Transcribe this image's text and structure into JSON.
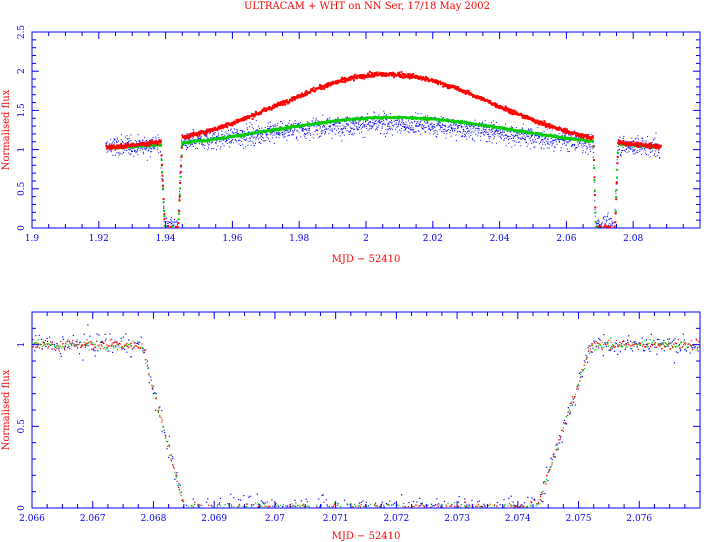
{
  "title": "ULTRACAM + WHT on NN Ser, 17/18 May 2002",
  "colors": {
    "frame": "#0000ff",
    "text": "#ff0000",
    "tick_labels": "#0000ff",
    "series_blue": "#0000ff",
    "series_green": "#00cc00",
    "series_red": "#ff0000"
  },
  "chart_data": [
    {
      "type": "scatter",
      "xlabel": "MJD − 52410",
      "ylabel": "Normalised flux",
      "xlim": [
        1.9,
        2.1
      ],
      "ylim": [
        0,
        2.5
      ],
      "xticks": [
        "1.9",
        "1.92",
        "1.94",
        "1.96",
        "1.98",
        "2",
        "2.02",
        "2.04",
        "2.06",
        "2.08"
      ],
      "yticks": [
        "0",
        "0.5",
        "1",
        "1.5",
        "2",
        "2.5"
      ],
      "grid": false,
      "legend": "none",
      "eclipses": [
        {
          "ingress_start": 1.9383,
          "ingress_end": 1.9395,
          "egress_start": 1.9435,
          "egress_end": 1.9447
        },
        {
          "ingress_start": 2.0678,
          "ingress_end": 2.0685,
          "egress_start": 2.0743,
          "egress_end": 2.0752
        }
      ],
      "x_range_observed": [
        1.922,
        2.088
      ],
      "series": [
        {
          "color": "blue",
          "baseline": 1.0,
          "peak": 1.33,
          "peak_x": 2.005,
          "width": 0.038,
          "eclipse_level": 0.03,
          "scatter": 0.12
        },
        {
          "color": "green",
          "baseline": 1.0,
          "peak": 1.41,
          "peak_x": 2.008,
          "width": 0.036,
          "eclipse_level": 0.0,
          "scatter": 0.01
        },
        {
          "color": "red",
          "baseline": 1.0,
          "peak": 1.96,
          "peak_x": 2.006,
          "width": 0.032,
          "eclipse_level": 0.0,
          "scatter": 0.02
        }
      ]
    },
    {
      "type": "scatter",
      "xlabel": "MJD − 52410",
      "ylabel": "Normalised flux",
      "xlim": [
        2.066,
        2.077
      ],
      "ylim": [
        0,
        1.2
      ],
      "xticks": [
        "2.066",
        "2.067",
        "2.068",
        "2.069",
        "2.07",
        "2.071",
        "2.072",
        "2.073",
        "2.074",
        "2.075",
        "2.076"
      ],
      "yticks": [
        "0",
        "0.5",
        "1"
      ],
      "grid": false,
      "legend": "none",
      "eclipse": {
        "ingress_start": 2.0678,
        "ingress_end": 2.0685,
        "egress_start": 2.0743,
        "egress_end": 2.0752
      },
      "out_of_eclipse_level": 1.0,
      "in_eclipse_level": 0.0,
      "series": [
        {
          "color": "blue",
          "scatter": 0.05
        },
        {
          "color": "green",
          "scatter": 0.02
        },
        {
          "color": "red",
          "scatter": 0.02
        }
      ]
    }
  ]
}
